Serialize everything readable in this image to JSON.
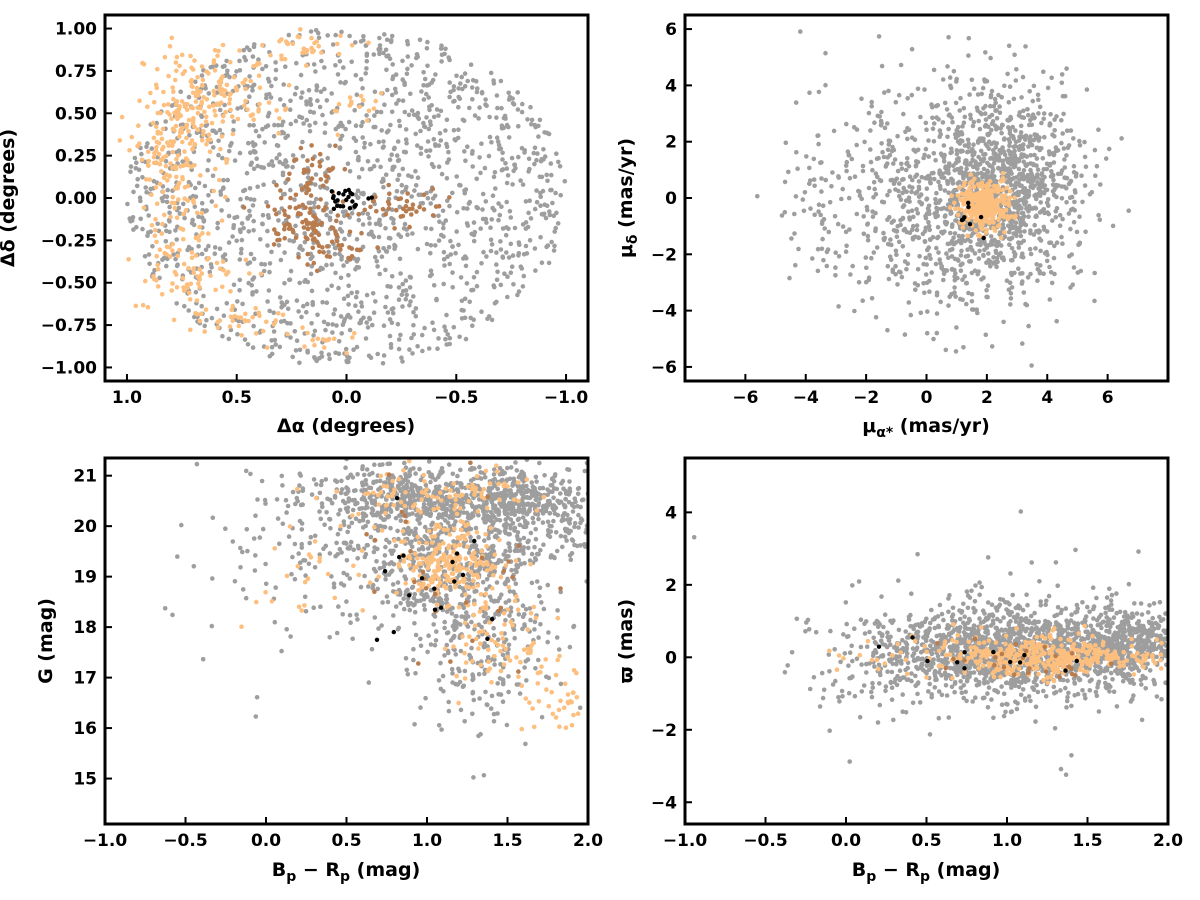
{
  "colors": {
    "field": "#9e9e9e",
    "member_light": "#fdbf7e",
    "member_mid": "#b87c4f",
    "member_dark": "#000000",
    "frame": "#000000"
  },
  "chart_data": [
    {
      "type": "scatter",
      "xlabel": "Δα (degrees)",
      "ylabel": "Δδ (degrees)",
      "xlim": [
        1.1,
        -1.1
      ],
      "ylim": [
        -1.08,
        1.08
      ],
      "xticks": [
        1.0,
        0.5,
        0.0,
        -0.5,
        -1.0
      ],
      "xtick_labels": [
        "1.0",
        "0.5",
        "0.0",
        "−0.5",
        "−1.0"
      ],
      "yticks": [
        1.0,
        0.75,
        0.5,
        0.25,
        0.0,
        -0.25,
        -0.5,
        -0.75,
        -1.0
      ],
      "ytick_labels": [
        "1.00",
        "0.75",
        "0.50",
        "0.25",
        "0.00",
        "−0.25",
        "−0.50",
        "−0.75",
        "−1.00"
      ],
      "grid": false,
      "series": [
        {
          "role": "field",
          "color_key": "field",
          "distribution": "disk",
          "cx": 0.0,
          "cy": 0.0,
          "rx": 1.0,
          "ry": 1.0,
          "n": 1500
        },
        {
          "role": "members-light",
          "color_key": "member_light",
          "distribution": "clumps",
          "clumps": [
            {
              "cx": 0.78,
              "cy": 0.25,
              "sx": 0.1,
              "sy": 0.3,
              "n": 220
            },
            {
              "cx": 0.55,
              "cy": 0.6,
              "sx": 0.15,
              "sy": 0.15,
              "n": 110
            },
            {
              "cx": 0.7,
              "cy": -0.45,
              "sx": 0.12,
              "sy": 0.12,
              "n": 70
            },
            {
              "cx": 0.45,
              "cy": -0.7,
              "sx": 0.1,
              "sy": 0.06,
              "n": 30
            },
            {
              "cx": 0.2,
              "cy": 0.88,
              "sx": 0.1,
              "sy": 0.05,
              "n": 30
            },
            {
              "cx": 0.08,
              "cy": -0.85,
              "sx": 0.06,
              "sy": 0.04,
              "n": 16
            },
            {
              "cx": -0.05,
              "cy": 0.5,
              "sx": 0.05,
              "sy": 0.06,
              "n": 16
            }
          ]
        },
        {
          "role": "members-mid",
          "color_key": "member_mid",
          "distribution": "clumps",
          "clumps": [
            {
              "cx": 0.2,
              "cy": -0.15,
              "sx": 0.1,
              "sy": 0.1,
              "n": 80
            },
            {
              "cx": 0.15,
              "cy": 0.15,
              "sx": 0.07,
              "sy": 0.08,
              "n": 40
            },
            {
              "cx": -0.25,
              "cy": -0.05,
              "sx": 0.1,
              "sy": 0.06,
              "n": 40
            },
            {
              "cx": 0.05,
              "cy": -0.3,
              "sx": 0.08,
              "sy": 0.06,
              "n": 30
            }
          ]
        },
        {
          "role": "members-core",
          "color_key": "member_dark",
          "distribution": "clumps",
          "clumps": [
            {
              "cx": 0.0,
              "cy": 0.0,
              "sx": 0.05,
              "sy": 0.04,
              "n": 24
            }
          ]
        }
      ]
    },
    {
      "type": "scatter",
      "xlabel": "μα* (mas/yr)",
      "ylabel": "μδ (mas/yr)",
      "xlim": [
        -8,
        8
      ],
      "ylim": [
        -6.5,
        6.5
      ],
      "xticks": [
        -6,
        -4,
        -2,
        0,
        2,
        4,
        6
      ],
      "xtick_labels": [
        "−6",
        "−4",
        "−2",
        "0",
        "2",
        "4",
        "6"
      ],
      "yticks": [
        6,
        4,
        2,
        0,
        -2,
        -4,
        -6
      ],
      "ytick_labels": [
        "6",
        "4",
        "2",
        "0",
        "−2",
        "−4",
        "−6"
      ],
      "grid": false,
      "series": [
        {
          "role": "field",
          "color_key": "field",
          "distribution": "clumps",
          "clumps": [
            {
              "cx": 2.5,
              "cy": 0.5,
              "sx": 1.2,
              "sy": 1.6,
              "n": 800
            },
            {
              "cx": 1.5,
              "cy": 0.0,
              "sx": 1.8,
              "sy": 2.0,
              "n": 600
            },
            {
              "cx": -1.0,
              "cy": 0.0,
              "sx": 1.5,
              "sy": 2.0,
              "n": 220
            },
            {
              "cx": -3.5,
              "cy": -0.5,
              "sx": 0.9,
              "sy": 1.5,
              "n": 50
            }
          ]
        },
        {
          "role": "members-light",
          "color_key": "member_light",
          "distribution": "clumps",
          "clumps": [
            {
              "cx": 1.9,
              "cy": -0.3,
              "sx": 0.4,
              "sy": 0.45,
              "n": 330
            }
          ]
        },
        {
          "role": "members-core",
          "color_key": "member_dark",
          "distribution": "clumps",
          "clumps": [
            {
              "cx": 1.4,
              "cy": -0.9,
              "sx": 0.3,
              "sy": 0.25,
              "n": 8
            }
          ]
        }
      ]
    },
    {
      "type": "scatter",
      "xlabel": "Bp − Rp (mag)",
      "ylabel": "G (mag)",
      "xlim": [
        -1.0,
        2.0
      ],
      "ylim": [
        14.1,
        21.35
      ],
      "xticks": [
        -1.0,
        -0.5,
        0.0,
        0.5,
        1.0,
        1.5,
        2.0
      ],
      "xtick_labels": [
        "−1.0",
        "−0.5",
        "0.0",
        "0.5",
        "1.0",
        "1.5",
        "2.0"
      ],
      "yticks": [
        21,
        20,
        19,
        18,
        17,
        16,
        15
      ],
      "ytick_labels": [
        "21",
        "20",
        "19",
        "18",
        "17",
        "16",
        "15"
      ],
      "grid": false,
      "series": [
        {
          "role": "field",
          "color_key": "field",
          "distribution": "clumps",
          "clumps": [
            {
              "cx": 1.1,
              "cy": 20.5,
              "sx": 0.45,
              "sy": 0.35,
              "n": 700
            },
            {
              "cx": 1.7,
              "cy": 20.3,
              "sx": 0.25,
              "sy": 0.45,
              "n": 300
            },
            {
              "cx": 1.15,
              "cy": 19.2,
              "sx": 0.3,
              "sy": 0.6,
              "n": 350
            },
            {
              "cx": 1.35,
              "cy": 17.8,
              "sx": 0.25,
              "sy": 0.8,
              "n": 280
            },
            {
              "cx": 0.6,
              "cy": 19.5,
              "sx": 0.35,
              "sy": 0.9,
              "n": 150
            },
            {
              "cx": 0.1,
              "cy": 19.0,
              "sx": 0.3,
              "sy": 1.2,
              "n": 40
            }
          ]
        },
        {
          "role": "members-light",
          "color_key": "member_light",
          "distribution": "clumps",
          "clumps": [
            {
              "cx": 1.15,
              "cy": 19.3,
              "sx": 0.18,
              "sy": 0.4,
              "n": 220
            },
            {
              "cx": 1.05,
              "cy": 20.6,
              "sx": 0.35,
              "sy": 0.25,
              "n": 90
            },
            {
              "cx": 1.45,
              "cy": 17.6,
              "sx": 0.15,
              "sy": 0.5,
              "n": 70
            },
            {
              "cx": 1.8,
              "cy": 16.5,
              "sx": 0.12,
              "sy": 0.4,
              "n": 40
            },
            {
              "cx": 0.3,
              "cy": 19.0,
              "sx": 0.25,
              "sy": 0.5,
              "n": 25
            }
          ]
        },
        {
          "role": "members-mid",
          "color_key": "member_mid",
          "distribution": "clumps",
          "clumps": [
            {
              "cx": 1.2,
              "cy": 19.0,
              "sx": 0.3,
              "sy": 1.0,
              "n": 30
            }
          ]
        },
        {
          "role": "members-core",
          "color_key": "member_dark",
          "distribution": "clumps",
          "clumps": [
            {
              "cx": 1.1,
              "cy": 18.8,
              "sx": 0.3,
              "sy": 0.7,
              "n": 18
            }
          ]
        }
      ]
    },
    {
      "type": "scatter",
      "xlabel": "Bp − Rp (mag)",
      "ylabel": "ϖ (mas)",
      "xlim": [
        -1.0,
        2.0
      ],
      "ylim": [
        -4.6,
        5.5
      ],
      "xticks": [
        -1.0,
        -0.5,
        0.0,
        0.5,
        1.0,
        1.5,
        2.0
      ],
      "xtick_labels": [
        "−1.0",
        "−0.5",
        "0.0",
        "0.5",
        "1.0",
        "1.5",
        "2.0"
      ],
      "yticks": [
        4,
        2,
        0,
        -2,
        -4
      ],
      "ytick_labels": [
        "4",
        "2",
        "0",
        "−2",
        "−4"
      ],
      "grid": false,
      "series": [
        {
          "role": "field",
          "color_key": "field",
          "distribution": "clumps",
          "clumps": [
            {
              "cx": 1.2,
              "cy": 0.2,
              "sx": 0.45,
              "sy": 0.6,
              "n": 1500
            },
            {
              "cx": 0.5,
              "cy": 0.0,
              "sx": 0.35,
              "sy": 0.8,
              "n": 250
            },
            {
              "cx": 1.8,
              "cy": 0.5,
              "sx": 0.15,
              "sy": 0.4,
              "n": 200
            },
            {
              "cx": 1.0,
              "cy": 0.5,
              "sx": 0.6,
              "sy": 1.6,
              "n": 70
            }
          ]
        },
        {
          "role": "members-light",
          "color_key": "member_light",
          "distribution": "clumps",
          "clumps": [
            {
              "cx": 1.15,
              "cy": 0.0,
              "sx": 0.3,
              "sy": 0.3,
              "n": 320
            },
            {
              "cx": 1.65,
              "cy": 0.0,
              "sx": 0.2,
              "sy": 0.12,
              "n": 60
            },
            {
              "cx": 0.2,
              "cy": 0.0,
              "sx": 0.25,
              "sy": 0.25,
              "n": 20
            }
          ]
        },
        {
          "role": "members-mid",
          "color_key": "member_mid",
          "distribution": "clumps",
          "clumps": [
            {
              "cx": 1.1,
              "cy": 0.0,
              "sx": 0.35,
              "sy": 0.35,
              "n": 25
            }
          ]
        },
        {
          "role": "members-core",
          "color_key": "member_dark",
          "distribution": "clumps",
          "clumps": [
            {
              "cx": 1.1,
              "cy": 0.0,
              "sx": 0.4,
              "sy": 0.25,
              "n": 12
            }
          ]
        }
      ]
    }
  ]
}
